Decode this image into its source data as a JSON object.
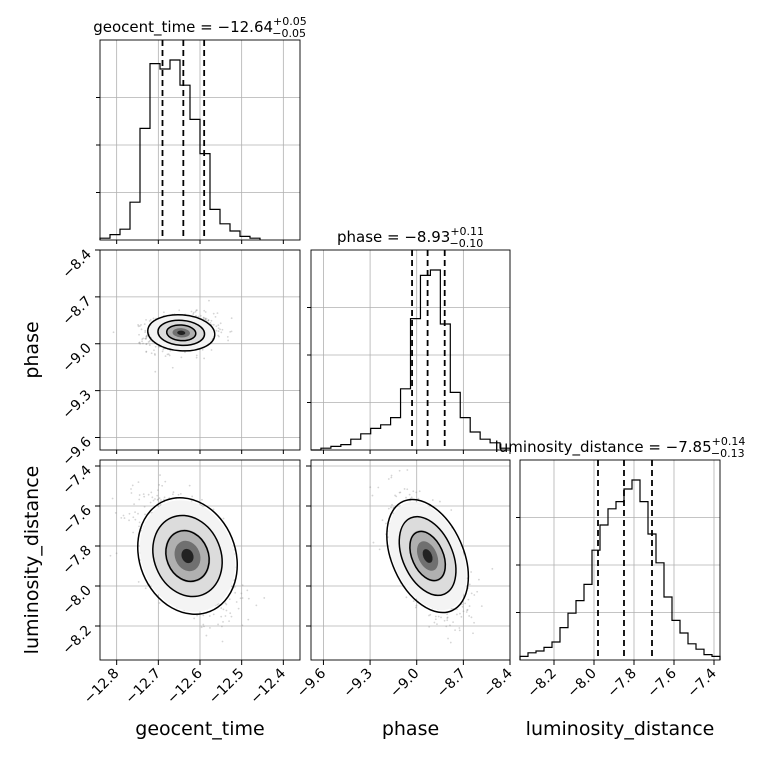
{
  "chart_data": {
    "type": "corner",
    "parameters": [
      {
        "name": "geocent_time",
        "label": "geocent_time",
        "title": "geocent_time = −12.64",
        "title_plus": "+0.05",
        "title_minus": "−0.05",
        "median": -12.64,
        "quantiles": [
          -12.69,
          -12.64,
          -12.59
        ],
        "range": [
          -12.84,
          -12.36
        ],
        "ticks": [
          -12.8,
          -12.7,
          -12.6,
          -12.5,
          -12.4
        ],
        "tick_labels": [
          "−12.8",
          "−12.7",
          "−12.6",
          "−12.5",
          "−12.4"
        ],
        "hist_bin_edges": [
          -12.84,
          -12.816,
          -12.792,
          -12.768,
          -12.744,
          -12.72,
          -12.696,
          -12.672,
          -12.648,
          -12.624,
          -12.6,
          -12.576,
          -12.552,
          -12.528,
          -12.504,
          -12.48,
          -12.456
        ],
        "hist_density": [
          0.01,
          0.03,
          0.06,
          0.21,
          0.62,
          0.98,
          0.95,
          1.0,
          0.86,
          0.67,
          0.48,
          0.17,
          0.09,
          0.05,
          0.02,
          0.01
        ]
      },
      {
        "name": "phase",
        "label": "phase",
        "title": "phase = −8.93",
        "title_plus": "+0.11",
        "title_minus": "−0.10",
        "median": -8.93,
        "quantiles": [
          -9.03,
          -8.93,
          -8.82
        ],
        "range": [
          -9.68,
          -8.4
        ],
        "ticks": [
          -9.6,
          -9.3,
          -9.0,
          -8.7,
          -8.4
        ],
        "tick_labels": [
          "−9.6",
          "−9.3",
          "−9.0",
          "−8.7",
          "−8.4"
        ],
        "hist_bin_edges": [
          -9.68,
          -9.616,
          -9.552,
          -9.488,
          -9.424,
          -9.36,
          -9.296,
          -9.232,
          -9.168,
          -9.104,
          -9.04,
          -8.976,
          -8.912,
          -8.848,
          -8.784,
          -8.72,
          -8.656,
          -8.592,
          -8.528,
          -8.464,
          -8.4
        ],
        "hist_density": [
          0.0,
          0.01,
          0.02,
          0.03,
          0.06,
          0.09,
          0.12,
          0.14,
          0.18,
          0.34,
          0.73,
          0.97,
          1.0,
          0.7,
          0.32,
          0.18,
          0.1,
          0.06,
          0.04,
          0.01
        ]
      },
      {
        "name": "luminosity_distance",
        "label": "luminosity_distance",
        "title": "luminosity_distance = −7.85",
        "title_plus": "+0.14",
        "title_minus": "−0.13",
        "median": -7.85,
        "quantiles": [
          -7.98,
          -7.85,
          -7.71
        ],
        "range": [
          -8.37,
          -7.37
        ],
        "ticks": [
          -8.2,
          -8.0,
          -7.8,
          -7.6,
          -7.4
        ],
        "tick_labels": [
          "−8.2",
          "−8.0",
          "−7.8",
          "−7.6",
          "−7.4"
        ],
        "hist_bin_edges": [
          -8.37,
          -8.33,
          -8.29,
          -8.25,
          -8.21,
          -8.17,
          -8.13,
          -8.09,
          -8.05,
          -8.01,
          -7.97,
          -7.93,
          -7.89,
          -7.85,
          -7.81,
          -7.77,
          -7.73,
          -7.69,
          -7.65,
          -7.61,
          -7.57,
          -7.53,
          -7.49,
          -7.45,
          -7.41,
          -7.37
        ],
        "hist_density": [
          0.02,
          0.04,
          0.05,
          0.07,
          0.1,
          0.18,
          0.26,
          0.33,
          0.42,
          0.61,
          0.75,
          0.84,
          0.88,
          0.95,
          1.0,
          0.88,
          0.7,
          0.54,
          0.35,
          0.22,
          0.15,
          0.09,
          0.06,
          0.03,
          0.02
        ]
      }
    ],
    "joint_2d": [
      {
        "x": "geocent_time",
        "y": "phase",
        "mean": [
          -12.645,
          -8.93
        ],
        "sd": [
          0.035,
          0.05
        ],
        "rho": 0.1,
        "contour_levels": 3
      },
      {
        "x": "geocent_time",
        "y": "luminosity_distance",
        "mean": [
          -12.63,
          -7.85
        ],
        "sd": [
          0.05,
          0.13
        ],
        "rho": -0.55,
        "contour_levels": 3
      },
      {
        "x": "phase",
        "y": "luminosity_distance",
        "mean": [
          -8.93,
          -7.85
        ],
        "sd": [
          0.1,
          0.13
        ],
        "rho": -0.6,
        "contour_levels": 3
      }
    ],
    "grid": true,
    "quantile_line_style": "dashed"
  }
}
